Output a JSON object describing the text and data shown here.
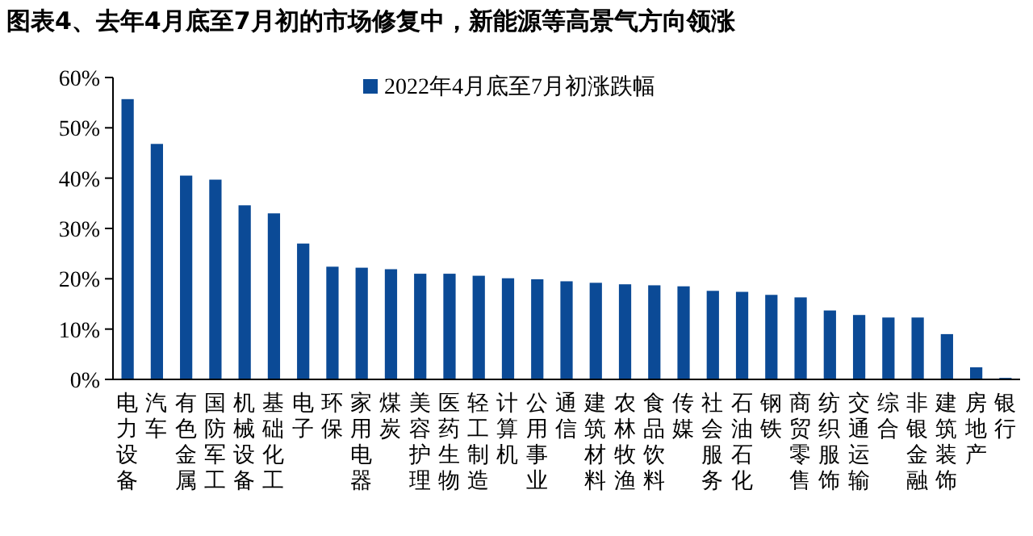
{
  "chart_data": {
    "type": "bar",
    "title": "图表4、去年4月底至7月初的市场修复中，新能源等高景气方向领涨",
    "categories": [
      "电力设备",
      "汽车",
      "有色金属",
      "国防军工",
      "机械设备",
      "基础化工",
      "电子",
      "环保",
      "家用电器",
      "煤炭",
      "美容护理",
      "医药生物",
      "轻工制造",
      "计算机",
      "公用事业",
      "通信",
      "建筑材料",
      "农林牧渔",
      "食品饮料",
      "传媒",
      "社会服务",
      "石油石化",
      "钢铁",
      "商贸零售",
      "纺织服饰",
      "交通运输",
      "综合",
      "非银金融",
      "建筑装饰",
      "房地产",
      "银行"
    ],
    "series": [
      {
        "name": "2022年4月底至7月初涨跌幅",
        "color": "#0b4a96",
        "values": [
          55.7,
          46.8,
          40.5,
          39.7,
          34.6,
          33.0,
          27.0,
          22.4,
          22.2,
          21.9,
          21.0,
          21.0,
          20.6,
          20.1,
          19.9,
          19.5,
          19.2,
          18.9,
          18.7,
          18.5,
          17.6,
          17.4,
          16.8,
          16.3,
          13.7,
          12.8,
          12.3,
          12.3,
          9.0,
          2.4,
          0.3
        ]
      }
    ],
    "ylim": [
      0,
      60
    ],
    "yticks": [
      {
        "value": 0,
        "label": "0%"
      },
      {
        "value": 10,
        "label": "10%"
      },
      {
        "value": 20,
        "label": "20%"
      },
      {
        "value": 30,
        "label": "30%"
      },
      {
        "value": 40,
        "label": "40%"
      },
      {
        "value": 50,
        "label": "50%"
      },
      {
        "value": 60,
        "label": "60%"
      }
    ],
    "grid": false,
    "legend": "top"
  }
}
